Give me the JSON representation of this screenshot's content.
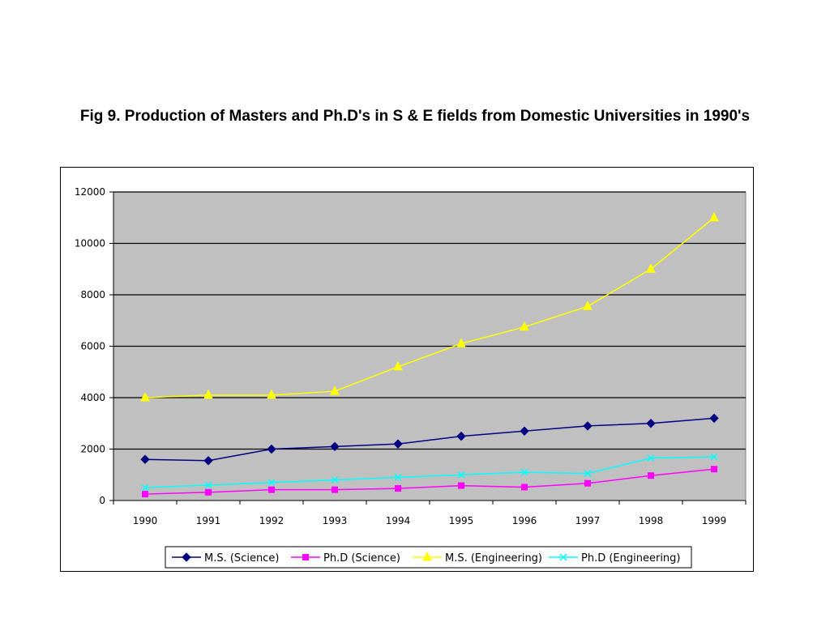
{
  "chart_data": {
    "type": "line",
    "title": "Fig 9. Production of Masters and Ph.D's in S & E fields from Domestic Universities in 1990's",
    "xlabel": "",
    "ylabel": "",
    "categories": [
      "1990",
      "1991",
      "1992",
      "1993",
      "1994",
      "1995",
      "1996",
      "1997",
      "1998",
      "1999"
    ],
    "ylim": [
      0,
      12000
    ],
    "yticks": [
      0,
      2000,
      4000,
      6000,
      8000,
      10000,
      12000
    ],
    "grid": true,
    "legend_position": "bottom",
    "plot_background": "#c0c0c0",
    "series": [
      {
        "name": "M.S. (Science)",
        "color": "#000080",
        "marker": "diamond",
        "values": [
          1600,
          1550,
          2000,
          2100,
          2200,
          2500,
          2700,
          2900,
          3000,
          3200
        ]
      },
      {
        "name": "Ph.D (Science)",
        "color": "#ff00ff",
        "marker": "square",
        "values": [
          250,
          320,
          420,
          420,
          470,
          580,
          520,
          670,
          970,
          1220
        ]
      },
      {
        "name": "M.S. (Engineering)",
        "color": "#ffff00",
        "marker": "triangle",
        "values": [
          4000,
          4100,
          4100,
          4250,
          5200,
          6100,
          6750,
          7550,
          9000,
          11000
        ]
      },
      {
        "name": "Ph.D (Engineering)",
        "color": "#00ffff",
        "marker": "x",
        "values": [
          500,
          600,
          700,
          800,
          900,
          1000,
          1100,
          1050,
          1650,
          1700
        ]
      }
    ]
  }
}
